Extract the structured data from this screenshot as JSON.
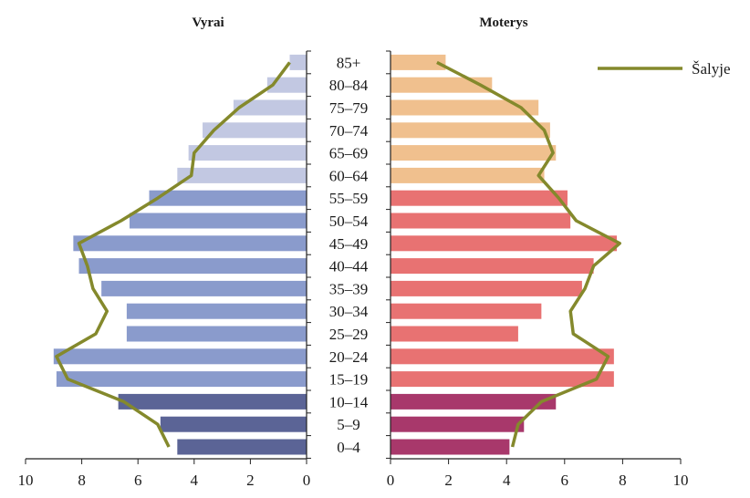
{
  "chart_data": {
    "type": "bar",
    "orientation": "horizontal",
    "panels": [
      {
        "title": "Vyrai",
        "direction": "left",
        "xlim": [
          0,
          10
        ],
        "ticks": [
          10,
          8,
          6,
          4,
          2,
          0
        ]
      },
      {
        "title": "Moterys",
        "direction": "right",
        "xlim": [
          0,
          10
        ],
        "ticks": [
          0,
          2,
          4,
          6,
          8,
          10
        ]
      }
    ],
    "categories": [
      "0–4",
      "5–9",
      "10–14",
      "15–19",
      "20–24",
      "25–29",
      "30–34",
      "35–39",
      "40–44",
      "45–49",
      "50–54",
      "55–59",
      "60–64",
      "65–69",
      "70–74",
      "75–79",
      "80–84",
      "85+"
    ],
    "series": [
      {
        "panel": "Vyrai",
        "values": [
          4.6,
          5.2,
          6.7,
          8.9,
          9.0,
          6.4,
          6.4,
          7.3,
          8.1,
          8.3,
          6.3,
          5.6,
          4.6,
          4.2,
          3.7,
          2.6,
          1.4,
          0.6
        ]
      },
      {
        "panel": "Moterys",
        "values": [
          4.1,
          4.6,
          5.7,
          7.7,
          7.7,
          4.4,
          5.2,
          6.6,
          7.0,
          7.8,
          6.2,
          6.1,
          5.3,
          5.7,
          5.5,
          5.1,
          3.5,
          1.9
        ]
      },
      {
        "panel": "Vyrai",
        "name": "Šalyje",
        "type": "line",
        "values": [
          4.9,
          5.3,
          6.5,
          8.5,
          8.9,
          7.5,
          7.1,
          7.6,
          7.8,
          8.1,
          6.6,
          5.3,
          4.1,
          4.0,
          3.3,
          2.4,
          1.2,
          0.6
        ]
      },
      {
        "panel": "Moterys",
        "name": "Šalyje",
        "type": "line",
        "values": [
          4.2,
          4.4,
          5.2,
          7.1,
          7.5,
          6.3,
          6.2,
          6.7,
          7.0,
          7.9,
          6.4,
          5.8,
          5.1,
          5.6,
          5.3,
          4.5,
          3.1,
          1.6
        ]
      }
    ],
    "colors": {
      "male": [
        "#5b6496",
        "#5b6496",
        "#5b6496",
        "#8a9bcc",
        "#8a9bcc",
        "#8a9bcc",
        "#8a9bcc",
        "#8a9bcc",
        "#8a9bcc",
        "#8a9bcc",
        "#8a9bcc",
        "#8a9bcc",
        "#c2c8e2",
        "#c2c8e2",
        "#c2c8e2",
        "#c2c8e2",
        "#c2c8e2",
        "#c2c8e2"
      ],
      "female": [
        "#a8386b",
        "#a8386b",
        "#a8386b",
        "#e87272",
        "#e87272",
        "#e87272",
        "#e87272",
        "#e87272",
        "#e87272",
        "#e87272",
        "#e87272",
        "#e87272",
        "#f0c08e",
        "#f0c08e",
        "#f0c08e",
        "#f0c08e",
        "#f0c08e",
        "#f0c08e"
      ],
      "line": "#84892c",
      "axis": "#222222"
    },
    "legend": {
      "position": "top-right"
    },
    "grid": false
  }
}
